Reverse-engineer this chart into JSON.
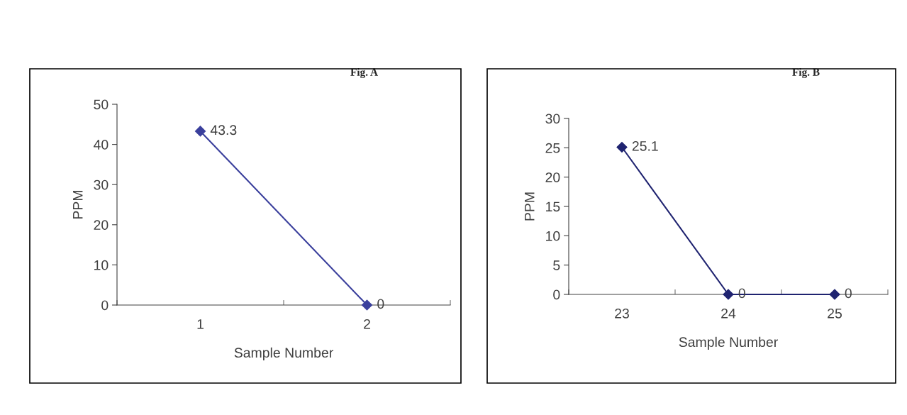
{
  "chart_data": [
    {
      "type": "line",
      "title": "Fig. A",
      "xlabel": "Sample Number",
      "ylabel": "PPM",
      "categories": [
        "1",
        "2"
      ],
      "series": [
        {
          "color": "#3a3f9c",
          "values": [
            43.3,
            0
          ]
        }
      ],
      "ylim": [
        0,
        50
      ],
      "yticks": [
        0,
        10,
        20,
        30,
        40,
        50
      ],
      "data_labels": true,
      "marker": "diamond",
      "grid": false,
      "legend": false
    },
    {
      "type": "line",
      "title": "Fig. B",
      "xlabel": "Sample Number",
      "ylabel": "PPM",
      "categories": [
        "23",
        "24",
        "25"
      ],
      "series": [
        {
          "color": "#1f2370",
          "values": [
            25.1,
            0,
            0
          ]
        }
      ],
      "ylim": [
        0,
        30
      ],
      "yticks": [
        0,
        5,
        10,
        15,
        20,
        25,
        30
      ],
      "data_labels": true,
      "marker": "diamond",
      "grid": false,
      "legend": false
    }
  ]
}
